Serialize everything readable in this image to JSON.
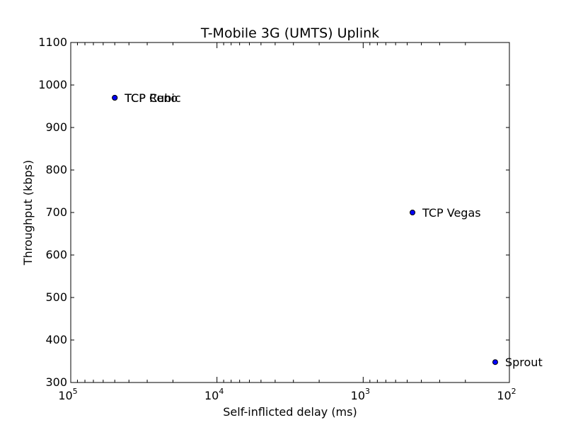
{
  "chart_data": {
    "type": "scatter",
    "title": "T-Mobile 3G (UMTS) Uplink",
    "xlabel": "Self-inflicted delay (ms)",
    "ylabel": "Throughput (kbps)",
    "x_scale": "log",
    "x_reversed": true,
    "xlim": [
      100000,
      100
    ],
    "ylim": [
      300,
      1100
    ],
    "grid": false,
    "x_ticks": [
      {
        "value": 100000,
        "base": "10",
        "exp": "5"
      },
      {
        "value": 10000,
        "base": "10",
        "exp": "4"
      },
      {
        "value": 1000,
        "base": "10",
        "exp": "3"
      },
      {
        "value": 100,
        "base": "10",
        "exp": "2"
      }
    ],
    "y_ticks": [
      "300",
      "400",
      "500",
      "600",
      "700",
      "800",
      "900",
      "1000",
      "1100"
    ],
    "marker_color": "#0000ff",
    "points": [
      {
        "label": "TCP Cubic",
        "x": 50000,
        "y": 970
      },
      {
        "label": "TCP Reno",
        "x": 50000,
        "y": 970
      },
      {
        "label": "TCP Vegas",
        "x": 460,
        "y": 700
      },
      {
        "label": "Sprout",
        "x": 125,
        "y": 348
      }
    ]
  }
}
